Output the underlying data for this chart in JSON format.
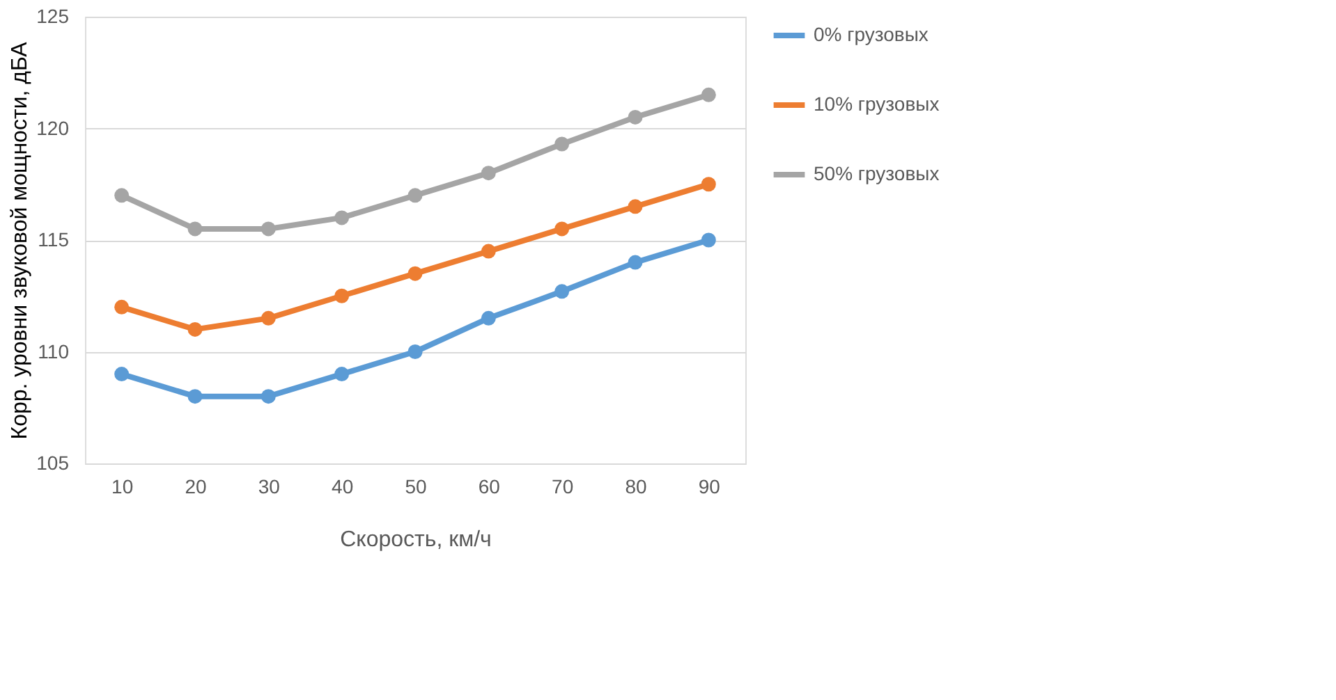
{
  "chart_data": {
    "type": "line",
    "xlabel": "Скорость, км/ч",
    "ylabel": "Корр. уровни звуковой мощности, дБА",
    "categories": [
      "10",
      "20",
      "30",
      "40",
      "50",
      "60",
      "70",
      "80",
      "90"
    ],
    "series": [
      {
        "name": "0% грузовых",
        "color": "#5b9bd5",
        "values": [
          109,
          108,
          108,
          109,
          110,
          111.5,
          112.7,
          114,
          115
        ]
      },
      {
        "name": "10% грузовых",
        "color": "#ed7d31",
        "values": [
          112,
          111,
          111.5,
          112.5,
          113.5,
          114.5,
          115.5,
          116.5,
          117.5
        ]
      },
      {
        "name": "50% грузовых",
        "color": "#a5a5a5",
        "values": [
          117,
          115.5,
          115.5,
          116,
          117,
          118,
          119.3,
          120.5,
          121.5
        ]
      }
    ],
    "ylim": [
      105,
      125
    ],
    "yticks": [
      105,
      110,
      115,
      120,
      125
    ],
    "grid": "y",
    "legend": "right",
    "marker": "circle",
    "line_style": "solid"
  }
}
